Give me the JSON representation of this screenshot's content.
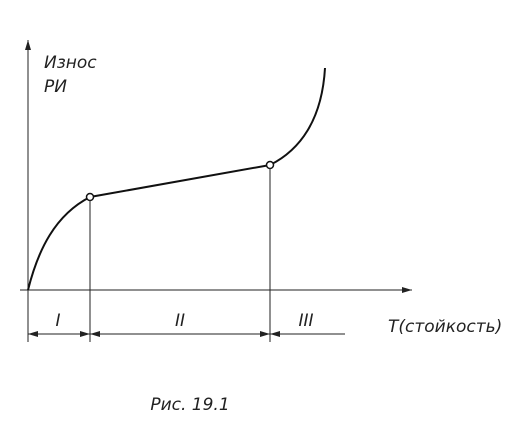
{
  "y_axis_label": [
    "Износ",
    "РИ"
  ],
  "x_axis_label": "T(стойкость)",
  "zones": [
    "I",
    "II",
    "III"
  ],
  "caption": "Рис. 19.1"
}
